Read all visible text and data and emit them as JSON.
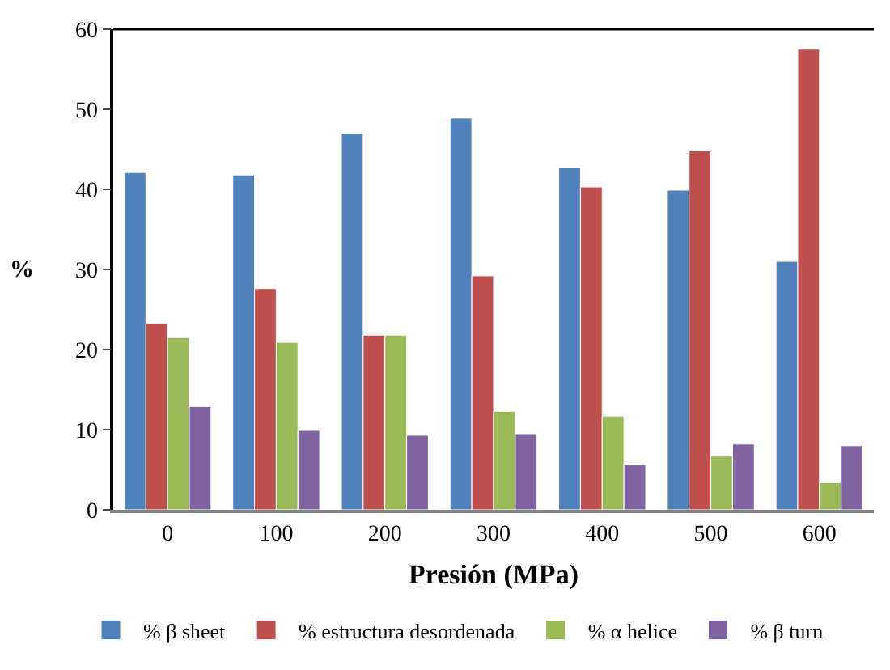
{
  "chart_data": {
    "type": "bar",
    "xlabel": "Presión (MPa)",
    "ylabel": "%",
    "categories": [
      "0",
      "100",
      "200",
      "300",
      "400",
      "500",
      "600"
    ],
    "series": [
      {
        "name": "% β sheet",
        "color": "#4f81bd",
        "values": [
          42.1,
          41.8,
          47.0,
          48.9,
          42.7,
          39.9,
          31.0
        ]
      },
      {
        "name": "% estructura desordenada",
        "color": "#c0504d",
        "values": [
          23.3,
          27.6,
          21.8,
          29.2,
          40.3,
          44.8,
          57.5
        ]
      },
      {
        "name": "% α helice",
        "color": "#9bbb59",
        "values": [
          21.5,
          20.9,
          21.8,
          12.3,
          11.7,
          6.7,
          3.4
        ]
      },
      {
        "name": "% β turn",
        "color": "#8064a2",
        "values": [
          12.9,
          9.9,
          9.3,
          9.5,
          5.6,
          8.2,
          8.0
        ]
      }
    ],
    "ylim": [
      0,
      60
    ],
    "yticks": [
      0,
      10,
      20,
      30,
      40,
      50,
      60
    ],
    "legend": "bottom"
  }
}
